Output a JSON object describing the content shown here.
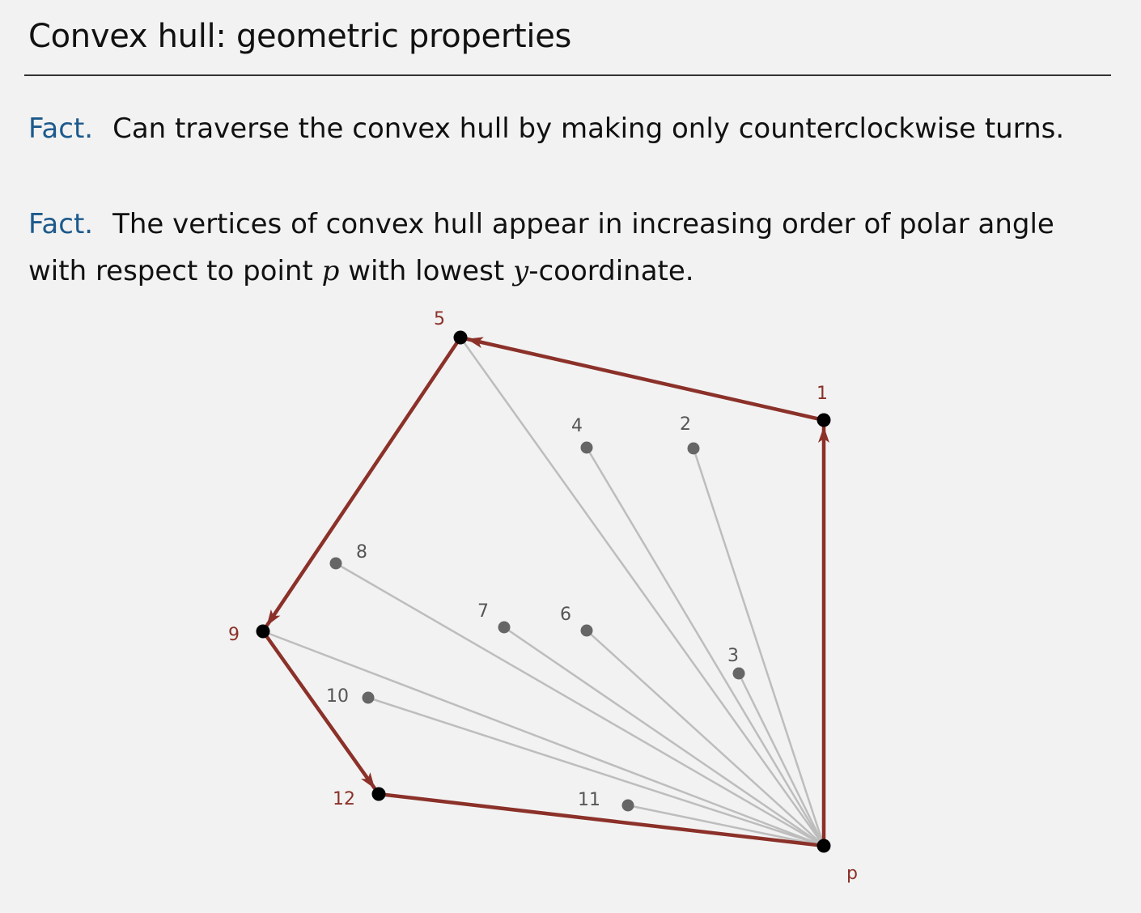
{
  "title": "Convex hull:  geometric properties",
  "facts": [
    {
      "label": "Fact.",
      "text": "Can traverse the convex hull by making only counterclockwise turns."
    },
    {
      "label": "Fact.",
      "text_a": "The vertices of convex hull appear in increasing order of polar angle with respect to point",
      "var_p": "p",
      "text_b": "with lowest",
      "var_y": "y",
      "text_c": "-coordinate."
    }
  ],
  "colors": {
    "hull": "#8b3129",
    "hull_point": "#000000",
    "interior_point": "#666666",
    "spoke": "#bdbdbd",
    "fact_label": "#1d5a8c"
  },
  "diagram": {
    "anchor_label": "p",
    "points": [
      {
        "label": "1",
        "hull": true
      },
      {
        "label": "2",
        "hull": false
      },
      {
        "label": "3",
        "hull": false
      },
      {
        "label": "4",
        "hull": false
      },
      {
        "label": "5",
        "hull": true
      },
      {
        "label": "6",
        "hull": false
      },
      {
        "label": "7",
        "hull": false
      },
      {
        "label": "8",
        "hull": false
      },
      {
        "label": "9",
        "hull": true
      },
      {
        "label": "10",
        "hull": false
      },
      {
        "label": "11",
        "hull": false
      },
      {
        "label": "12",
        "hull": true
      }
    ],
    "hull_order": [
      "p",
      "1",
      "5",
      "9",
      "12",
      "p"
    ]
  }
}
